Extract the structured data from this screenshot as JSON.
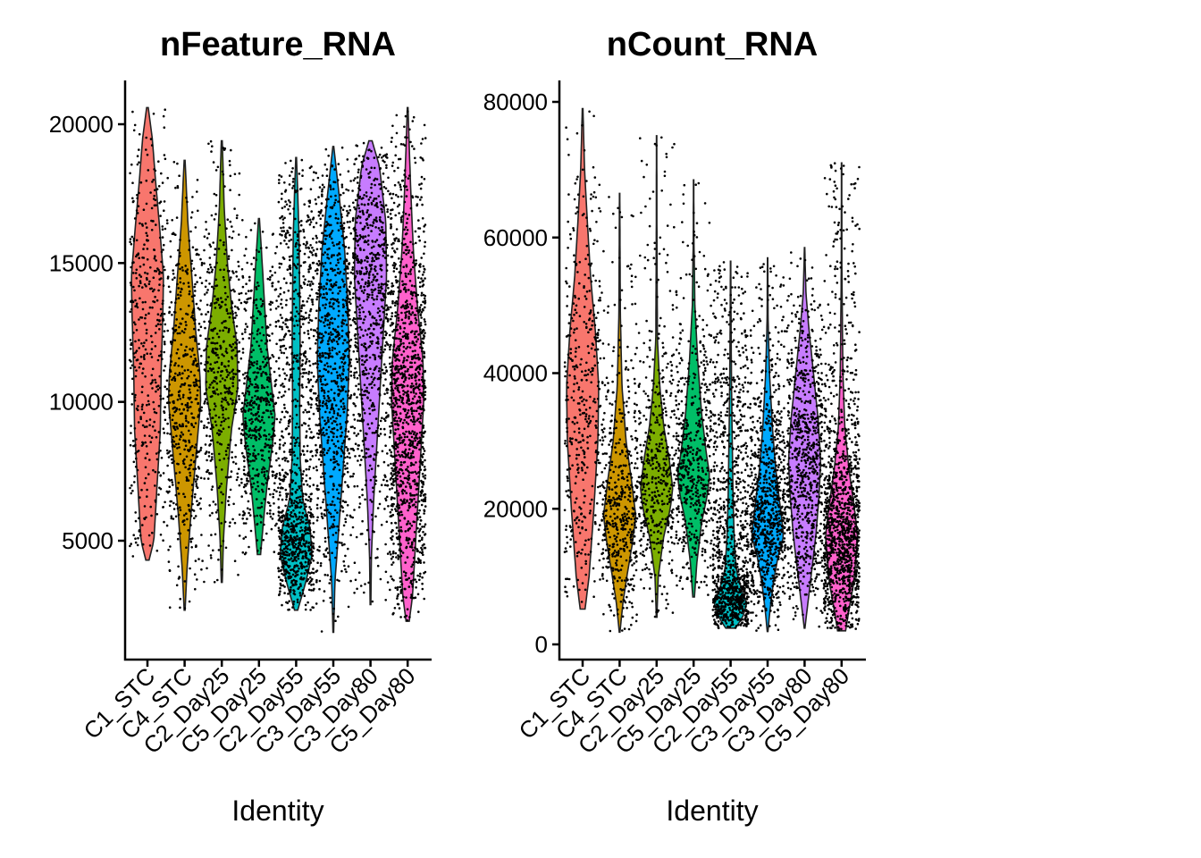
{
  "chart_data": [
    {
      "type": "violin",
      "title": "nFeature_RNA",
      "xlabel": "Identity",
      "ylabel": "",
      "ylim": [
        0,
        22000
      ],
      "yticks": [
        5000,
        10000,
        15000,
        20000
      ],
      "ytick_labels": [
        "5000",
        "10000",
        "15000",
        "20000"
      ],
      "categories": [
        "C1_STC",
        "C4_STC",
        "C2_Day25",
        "C5_Day25",
        "C2_Day55",
        "C3_Day55",
        "C3_Day80",
        "C5_Day80"
      ],
      "series": [
        {
          "category": "C1_STC",
          "color": "#F8766D",
          "min": 4300,
          "max": 20600,
          "density": [
            [
              4300,
              0.1
            ],
            [
              5000,
              0.4
            ],
            [
              7000,
              0.6
            ],
            [
              9000,
              0.8
            ],
            [
              11000,
              0.85
            ],
            [
              13000,
              0.95
            ],
            [
              14500,
              1.0
            ],
            [
              16000,
              0.8
            ],
            [
              18000,
              0.5
            ],
            [
              19500,
              0.3
            ],
            [
              20600,
              0.05
            ]
          ],
          "n_points": 420
        },
        {
          "category": "C4_STC",
          "color": "#CD9600",
          "min": 2500,
          "max": 18700,
          "density": [
            [
              2500,
              0.03
            ],
            [
              4000,
              0.15
            ],
            [
              6000,
              0.4
            ],
            [
              8000,
              0.7
            ],
            [
              10000,
              1.0
            ],
            [
              11000,
              0.95
            ],
            [
              12500,
              0.7
            ],
            [
              14500,
              0.45
            ],
            [
              16500,
              0.2
            ],
            [
              18700,
              0.03
            ]
          ],
          "n_points": 520
        },
        {
          "category": "C2_Day25",
          "color": "#7CAE00",
          "min": 3500,
          "max": 19400,
          "density": [
            [
              3500,
              0.03
            ],
            [
              5000,
              0.1
            ],
            [
              7000,
              0.3
            ],
            [
              9000,
              0.6
            ],
            [
              10500,
              1.0
            ],
            [
              12000,
              0.95
            ],
            [
              13500,
              0.6
            ],
            [
              15000,
              0.35
            ],
            [
              17000,
              0.15
            ],
            [
              19400,
              0.03
            ]
          ],
          "n_points": 480
        },
        {
          "category": "C5_Day25",
          "color": "#00BE67",
          "min": 4500,
          "max": 16600,
          "density": [
            [
              4500,
              0.1
            ],
            [
              5500,
              0.25
            ],
            [
              7000,
              0.5
            ],
            [
              8500,
              0.85
            ],
            [
              9500,
              1.0
            ],
            [
              10500,
              0.8
            ],
            [
              12000,
              0.5
            ],
            [
              13500,
              0.35
            ],
            [
              15000,
              0.2
            ],
            [
              16600,
              0.03
            ]
          ],
          "n_points": 560
        },
        {
          "category": "C2_Day55",
          "color": "#00BFC4",
          "min": 2500,
          "max": 18800,
          "density": [
            [
              2500,
              0.1
            ],
            [
              3500,
              0.6
            ],
            [
              4500,
              1.0
            ],
            [
              5500,
              0.85
            ],
            [
              6500,
              0.4
            ],
            [
              8000,
              0.25
            ],
            [
              10000,
              0.22
            ],
            [
              12000,
              0.25
            ],
            [
              14000,
              0.22
            ],
            [
              16000,
              0.18
            ],
            [
              17500,
              0.1
            ],
            [
              18800,
              0.02
            ]
          ],
          "n_points": 1100
        },
        {
          "category": "C3_Day55",
          "color": "#00A9FF",
          "min": 1700,
          "max": 19200,
          "density": [
            [
              1700,
              0.02
            ],
            [
              3500,
              0.1
            ],
            [
              5500,
              0.35
            ],
            [
              7500,
              0.6
            ],
            [
              9500,
              0.85
            ],
            [
              11500,
              1.0
            ],
            [
              13500,
              0.9
            ],
            [
              15500,
              0.7
            ],
            [
              17500,
              0.35
            ],
            [
              19200,
              0.03
            ]
          ],
          "n_points": 900
        },
        {
          "category": "C3_Day80",
          "color": "#C77CFF",
          "min": 2700,
          "max": 19400,
          "density": [
            [
              2700,
              0.02
            ],
            [
              4500,
              0.06
            ],
            [
              6500,
              0.2
            ],
            [
              8500,
              0.4
            ],
            [
              10500,
              0.6
            ],
            [
              12500,
              0.8
            ],
            [
              14500,
              1.0
            ],
            [
              16500,
              0.95
            ],
            [
              18500,
              0.55
            ],
            [
              19400,
              0.1
            ]
          ],
          "n_points": 800
        },
        {
          "category": "C5_Day80",
          "color": "#FF61CC",
          "min": 2100,
          "max": 20600,
          "density": [
            [
              2100,
              0.1
            ],
            [
              3000,
              0.3
            ],
            [
              5000,
              0.5
            ],
            [
              7500,
              0.75
            ],
            [
              10000,
              1.0
            ],
            [
              11500,
              0.95
            ],
            [
              13500,
              0.6
            ],
            [
              15500,
              0.35
            ],
            [
              17500,
              0.2
            ],
            [
              19500,
              0.08
            ],
            [
              20600,
              0.02
            ]
          ],
          "n_points": 1300
        }
      ]
    },
    {
      "type": "violin",
      "title": "nCount_RNA",
      "xlabel": "Identity",
      "ylabel": "",
      "ylim": [
        0,
        83000
      ],
      "yticks": [
        0,
        20000,
        40000,
        60000,
        80000
      ],
      "ytick_labels": [
        "0",
        "20000",
        "40000",
        "60000",
        "80000"
      ],
      "categories": [
        "C1_STC",
        "C4_STC",
        "C2_Day25",
        "C5_Day25",
        "C2_Day55",
        "C3_Day55",
        "C3_Day80",
        "C5_Day80"
      ],
      "series": [
        {
          "category": "C1_STC",
          "color": "#F8766D",
          "min": 5200,
          "max": 79000,
          "density": [
            [
              5200,
              0.15
            ],
            [
              10000,
              0.4
            ],
            [
              20000,
              0.7
            ],
            [
              30000,
              0.95
            ],
            [
              38000,
              1.0
            ],
            [
              46000,
              0.8
            ],
            [
              54000,
              0.5
            ],
            [
              62000,
              0.3
            ],
            [
              70000,
              0.12
            ],
            [
              79000,
              0.02
            ]
          ],
          "n_points": 420
        },
        {
          "category": "C4_STC",
          "color": "#CD9600",
          "min": 1800,
          "max": 66500,
          "density": [
            [
              1800,
              0.02
            ],
            [
              6000,
              0.2
            ],
            [
              10000,
              0.45
            ],
            [
              15000,
              0.8
            ],
            [
              19000,
              1.0
            ],
            [
              24000,
              0.75
            ],
            [
              30000,
              0.4
            ],
            [
              38000,
              0.15
            ],
            [
              48000,
              0.05
            ],
            [
              56000,
              0.03
            ],
            [
              66500,
              0.01
            ]
          ],
          "n_points": 520
        },
        {
          "category": "C2_Day25",
          "color": "#7CAE00",
          "min": 4000,
          "max": 75000,
          "density": [
            [
              4000,
              0.02
            ],
            [
              10000,
              0.1
            ],
            [
              16000,
              0.45
            ],
            [
              20000,
              0.85
            ],
            [
              23000,
              1.0
            ],
            [
              27000,
              0.8
            ],
            [
              32000,
              0.45
            ],
            [
              38000,
              0.2
            ],
            [
              45000,
              0.05
            ],
            [
              60000,
              0.02
            ],
            [
              75000,
              0.01
            ]
          ],
          "n_points": 480
        },
        {
          "category": "C5_Day25",
          "color": "#00BE67",
          "min": 7000,
          "max": 68500,
          "density": [
            [
              7000,
              0.05
            ],
            [
              12000,
              0.2
            ],
            [
              18000,
              0.5
            ],
            [
              22000,
              0.85
            ],
            [
              25000,
              1.0
            ],
            [
              28000,
              0.8
            ],
            [
              34000,
              0.5
            ],
            [
              42000,
              0.25
            ],
            [
              50000,
              0.08
            ],
            [
              60000,
              0.02
            ],
            [
              68500,
              0.01
            ]
          ],
          "n_points": 560
        },
        {
          "category": "C2_Day55",
          "color": "#00BFC4",
          "min": 2400,
          "max": 56500,
          "density": [
            [
              2400,
              0.3
            ],
            [
              4000,
              0.75
            ],
            [
              6000,
              1.0
            ],
            [
              8000,
              0.7
            ],
            [
              11000,
              0.35
            ],
            [
              16000,
              0.22
            ],
            [
              22000,
              0.15
            ],
            [
              30000,
              0.1
            ],
            [
              38000,
              0.06
            ],
            [
              46000,
              0.03
            ],
            [
              56500,
              0.01
            ]
          ],
          "n_points": 1100
        },
        {
          "category": "C3_Day55",
          "color": "#00A9FF",
          "min": 1900,
          "max": 57000,
          "density": [
            [
              1900,
              0.02
            ],
            [
              5000,
              0.15
            ],
            [
              9000,
              0.35
            ],
            [
              13000,
              0.65
            ],
            [
              16000,
              1.0
            ],
            [
              20000,
              0.8
            ],
            [
              26000,
              0.5
            ],
            [
              32000,
              0.3
            ],
            [
              40000,
              0.12
            ],
            [
              48000,
              0.03
            ],
            [
              57000,
              0.01
            ]
          ],
          "n_points": 900
        },
        {
          "category": "C3_Day80",
          "color": "#C77CFF",
          "min": 2400,
          "max": 58500,
          "density": [
            [
              2400,
              0.02
            ],
            [
              6000,
              0.2
            ],
            [
              11000,
              0.45
            ],
            [
              16000,
              0.7
            ],
            [
              22000,
              0.9
            ],
            [
              27000,
              1.0
            ],
            [
              33000,
              0.85
            ],
            [
              40000,
              0.55
            ],
            [
              47000,
              0.25
            ],
            [
              52000,
              0.08
            ],
            [
              58500,
              0.01
            ]
          ],
          "n_points": 800
        },
        {
          "category": "C5_Day80",
          "color": "#FF61CC",
          "min": 2000,
          "max": 71000,
          "density": [
            [
              2000,
              0.25
            ],
            [
              5000,
              0.45
            ],
            [
              9000,
              0.75
            ],
            [
              13000,
              0.9
            ],
            [
              16000,
              1.0
            ],
            [
              20000,
              0.8
            ],
            [
              26000,
              0.45
            ],
            [
              32000,
              0.2
            ],
            [
              40000,
              0.08
            ],
            [
              55000,
              0.02
            ],
            [
              71000,
              0.01
            ]
          ],
          "n_points": 1300
        }
      ]
    }
  ]
}
